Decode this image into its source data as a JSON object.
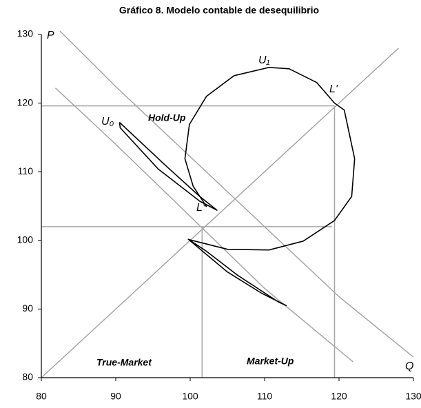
{
  "chart_data": {
    "type": "line",
    "title": "Gráfico 8. Modelo contable de desequilibrio",
    "xlim": [
      80,
      130
    ],
    "ylim": [
      80,
      130
    ],
    "xticks": [
      80,
      90,
      100,
      110,
      120,
      130
    ],
    "yticks": [
      80,
      90,
      100,
      110,
      120,
      130
    ],
    "series": [
      {
        "color": "#a6a6a6",
        "x": [
          80,
          128
        ],
        "values": [
          80,
          128
        ]
      },
      {
        "color": "#a6a6a6",
        "x": [
          82.5,
          90,
          100,
          110,
          120,
          130
        ],
        "values": [
          130.5,
          122.4,
          112.2,
          102.0,
          91.8,
          83
        ]
      },
      {
        "color": "#a6a6a6",
        "x": [
          81.9,
          90,
          100,
          110,
          121.9
        ],
        "values": [
          122.2,
          114.0,
          103.5,
          93.0,
          82.3
        ]
      },
      {
        "color": "#a6a6a6",
        "x": [
          80,
          119.4
        ],
        "values": [
          119.6,
          119.6
        ]
      },
      {
        "color": "#a6a6a6",
        "x": [
          119.4,
          119.4
        ],
        "values": [
          80,
          119.6
        ]
      },
      {
        "color": "#a6a6a6",
        "x": [
          80,
          119.1
        ],
        "values": [
          102,
          102
        ]
      },
      {
        "color": "#a6a6a6",
        "x": [
          101.6,
          101.6
        ],
        "values": [
          80,
          102
        ]
      },
      {
        "color": "#000000",
        "x": [
          99.9,
          105.0,
          110.6,
          115.2,
          119.4,
          121.7,
          122.1,
          120.7,
          119.4,
          117.0,
          113.3,
          110.6,
          105.9,
          102.2,
          99.9,
          99.3,
          100.4,
          102.2
        ],
        "values": [
          100.1,
          98.7,
          98.6,
          99.9,
          102.9,
          106.4,
          111.9,
          119.0,
          120.0,
          123.0,
          125.0,
          125.2,
          124.0,
          121.0,
          116.9,
          111.9,
          107.9,
          104.9
        ]
      },
      {
        "color": "#000000",
        "x": [
          90.5,
          96.7,
          101.3,
          103.6,
          101.3,
          95.7,
          90.6,
          90.5
        ],
        "values": [
          117.2,
          110.9,
          106.4,
          104.4,
          105.7,
          110.4,
          116.4,
          117.2
        ]
      },
      {
        "color": "#000000",
        "x": [
          99.7,
          105.0,
          109.6,
          112.9,
          111.9,
          106.4,
          102.2,
          99.7
        ],
        "values": [
          100.2,
          95.4,
          92.3,
          90.5,
          91.0,
          94.9,
          98.4,
          100.2
        ]
      }
    ],
    "annotations": [
      "P",
      "Q",
      "U₀",
      "U₁",
      "L'",
      "L°",
      "Hold-Up",
      "True-Market",
      "Market-Up"
    ]
  }
}
